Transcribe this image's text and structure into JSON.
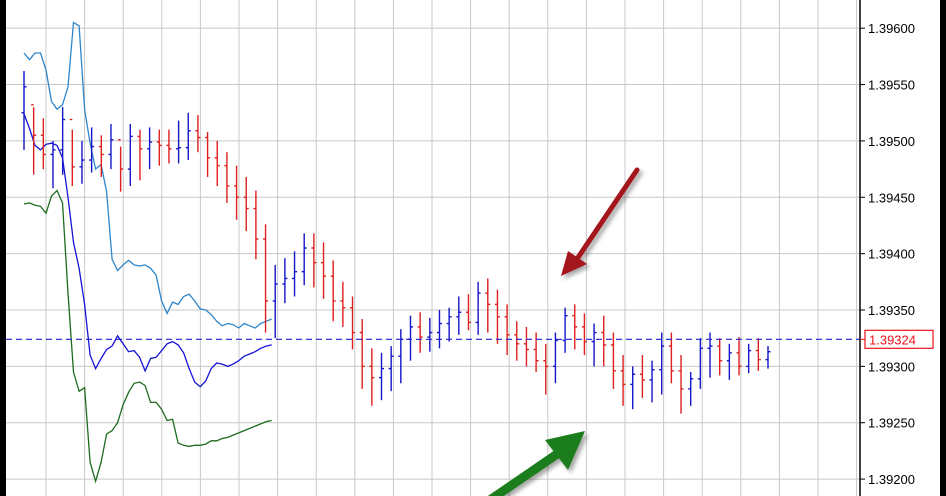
{
  "chart_data": {
    "type": "line",
    "title": "",
    "xlabel": "",
    "ylabel": "",
    "ylim": [
      1.39185,
      1.39625
    ],
    "y_ticks": [
      "1.39600",
      "1.39550",
      "1.39500",
      "1.39450",
      "1.39400",
      "1.39350",
      "1.39300",
      "1.39250",
      "1.39200"
    ],
    "current_price": "1.39324",
    "grid": true,
    "colors": {
      "upper_band": "#2f86c9",
      "lower_band": "#1e6b1e",
      "middle_line": "#1414d6",
      "bar_up": "#1414c8",
      "bar_down": "#e01e1e",
      "bar_neutral": "#111111",
      "price_line": "#2020d0",
      "arrow_red": "#a3121b",
      "arrow_green": "#1b7d1b",
      "grid": "#c8c8c8"
    },
    "series": [
      {
        "role": "upper_band",
        "x": [
          0,
          5,
          10,
          15,
          20,
          25,
          30,
          35,
          40,
          45,
          50,
          55,
          60,
          65,
          70,
          75,
          80,
          85,
          90,
          95,
          100,
          105,
          110,
          115,
          120,
          125,
          130,
          135,
          140,
          145,
          150,
          155,
          160,
          165,
          170,
          175,
          180,
          185,
          190,
          195,
          200,
          205,
          210,
          215,
          220,
          225
        ],
        "values": [
          1.39578,
          1.39572,
          1.39578,
          1.39578,
          1.39563,
          1.39535,
          1.39528,
          1.39532,
          1.39548,
          1.39605,
          1.39602,
          1.39528,
          1.39498,
          1.39475,
          1.39479,
          1.39455,
          1.39395,
          1.39385,
          1.3939,
          1.39394,
          1.3939,
          1.39389,
          1.3939,
          1.39387,
          1.39381,
          1.39358,
          1.39347,
          1.39357,
          1.39355,
          1.39362,
          1.39364,
          1.39358,
          1.39351,
          1.3935,
          1.39346,
          1.3934,
          1.39336,
          1.39338,
          1.39337,
          1.39334,
          1.39338,
          1.39336,
          1.39334,
          1.39338,
          1.3934,
          1.39342
        ]
      },
      {
        "role": "middle_band",
        "x": [
          0,
          5,
          10,
          15,
          20,
          25,
          30,
          35,
          40,
          45,
          50,
          55,
          60,
          65,
          70,
          75,
          80,
          85,
          90,
          95,
          100,
          105,
          110,
          115,
          120,
          125,
          130,
          135,
          140,
          145,
          150,
          155,
          160,
          165,
          170,
          175,
          180,
          185,
          190,
          195,
          200,
          205,
          210,
          215,
          220,
          225
        ],
        "values": [
          1.39524,
          1.39511,
          1.39496,
          1.39492,
          1.39497,
          1.39498,
          1.39496,
          1.39485,
          1.3945,
          1.3941,
          1.39387,
          1.39355,
          1.3931,
          1.39298,
          1.39307,
          1.39315,
          1.39318,
          1.39327,
          1.3932,
          1.39313,
          1.39314,
          1.39308,
          1.39296,
          1.39307,
          1.39308,
          1.39314,
          1.3932,
          1.39322,
          1.39319,
          1.39312,
          1.39298,
          1.39286,
          1.39282,
          1.39287,
          1.39298,
          1.39303,
          1.39302,
          1.393,
          1.39302,
          1.39305,
          1.39309,
          1.39311,
          1.39313,
          1.39316,
          1.39318,
          1.39319
        ]
      },
      {
        "role": "lower_band",
        "x": [
          0,
          5,
          10,
          15,
          20,
          25,
          30,
          35,
          40,
          45,
          50,
          55,
          60,
          65,
          70,
          75,
          80,
          85,
          90,
          95,
          100,
          105,
          110,
          115,
          120,
          125,
          130,
          135,
          140,
          145,
          150,
          155,
          160,
          165,
          170,
          175,
          180,
          185,
          190,
          195,
          200,
          205,
          210,
          215,
          220,
          225
        ],
        "values": [
          1.39444,
          1.39445,
          1.39443,
          1.39442,
          1.39436,
          1.39451,
          1.39456,
          1.39445,
          1.39365,
          1.39295,
          1.39278,
          1.39281,
          1.39215,
          1.39198,
          1.39215,
          1.3924,
          1.39243,
          1.3925,
          1.39266,
          1.39277,
          1.39285,
          1.39286,
          1.39283,
          1.39268,
          1.39268,
          1.39262,
          1.39252,
          1.39253,
          1.39232,
          1.3923,
          1.39229,
          1.3923,
          1.3923,
          1.39231,
          1.39234,
          1.39234,
          1.39236,
          1.39237,
          1.39239,
          1.39241,
          1.39243,
          1.39245,
          1.39247,
          1.39249,
          1.39251,
          1.39252
        ]
      }
    ],
    "bars": [
      [
        1.39525,
        1.39562,
        1.39492,
        1.39548
      ],
      [
        1.39532,
        1.3953,
        1.3947,
        1.39505
      ],
      [
        1.39505,
        1.3952,
        1.39475,
        1.39488
      ],
      [
        1.39488,
        1.395,
        1.39458,
        1.39492
      ],
      [
        1.39492,
        1.3953,
        1.3947,
        1.39519
      ],
      [
        1.39519,
        1.3951,
        1.3946,
        1.39477
      ],
      [
        1.39477,
        1.395,
        1.39462,
        1.39483
      ],
      [
        1.39483,
        1.39512,
        1.39472,
        1.39495
      ],
      [
        1.39495,
        1.39505,
        1.39468,
        1.39488
      ],
      [
        1.39488,
        1.39515,
        1.39475,
        1.39501
      ],
      [
        1.39501,
        1.39495,
        1.39455,
        1.39475
      ],
      [
        1.39475,
        1.39515,
        1.3946,
        1.39504
      ],
      [
        1.39504,
        1.3951,
        1.39465,
        1.39493
      ],
      [
        1.39493,
        1.39512,
        1.39475,
        1.39499
      ],
      [
        1.39499,
        1.3951,
        1.39478,
        1.39496
      ],
      [
        1.39496,
        1.3951,
        1.3948,
        1.39493
      ],
      [
        1.39493,
        1.39518,
        1.3948,
        1.39494
      ],
      [
        1.39494,
        1.39525,
        1.39483,
        1.39509
      ],
      [
        1.39509,
        1.39523,
        1.3949,
        1.39503
      ],
      [
        1.39503,
        1.39508,
        1.39468,
        1.39485
      ],
      [
        1.39485,
        1.395,
        1.3946,
        1.39478
      ],
      [
        1.39478,
        1.3949,
        1.39445,
        1.3946
      ],
      [
        1.3946,
        1.39478,
        1.3943,
        1.3945
      ],
      [
        1.3945,
        1.39468,
        1.3942,
        1.3944
      ],
      [
        1.3944,
        1.39456,
        1.39395,
        1.39413
      ],
      [
        1.39413,
        1.39426,
        1.3933,
        1.39358
      ],
      [
        1.39358,
        1.3939,
        1.39325,
        1.39373
      ],
      [
        1.39373,
        1.39396,
        1.39356,
        1.39378
      ],
      [
        1.39378,
        1.39402,
        1.39362,
        1.39384
      ],
      [
        1.39384,
        1.39418,
        1.39372,
        1.39405
      ],
      [
        1.39405,
        1.39418,
        1.3937,
        1.39392
      ],
      [
        1.39392,
        1.3941,
        1.3936,
        1.3938
      ],
      [
        1.3938,
        1.39394,
        1.3934,
        1.39358
      ],
      [
        1.39358,
        1.39375,
        1.39335,
        1.39352
      ],
      [
        1.39352,
        1.39362,
        1.39315,
        1.3933
      ],
      [
        1.3933,
        1.39342,
        1.3928,
        1.393
      ],
      [
        1.393,
        1.39316,
        1.39265,
        1.3929
      ],
      [
        1.3929,
        1.39312,
        1.3927,
        1.39298
      ],
      [
        1.39298,
        1.39318,
        1.39278,
        1.39309
      ],
      [
        1.39309,
        1.39333,
        1.39285,
        1.39324
      ],
      [
        1.39324,
        1.39345,
        1.39305,
        1.39335
      ],
      [
        1.39335,
        1.39348,
        1.39312,
        1.39326
      ],
      [
        1.39326,
        1.39343,
        1.39313,
        1.3933
      ],
      [
        1.3933,
        1.3935,
        1.39316,
        1.39338
      ],
      [
        1.39338,
        1.39352,
        1.39322,
        1.39344
      ],
      [
        1.39344,
        1.39362,
        1.39328,
        1.39348
      ],
      [
        1.39348,
        1.39364,
        1.39332,
        1.39339
      ],
      [
        1.39339,
        1.39375,
        1.39328,
        1.39365
      ],
      [
        1.39365,
        1.39378,
        1.3933,
        1.39355
      ],
      [
        1.39355,
        1.39368,
        1.3932,
        1.39344
      ],
      [
        1.39344,
        1.39355,
        1.3931,
        1.39328
      ],
      [
        1.39328,
        1.3934,
        1.39305,
        1.3932
      ],
      [
        1.3932,
        1.39335,
        1.393,
        1.39315
      ],
      [
        1.39315,
        1.3933,
        1.39295,
        1.39305
      ],
      [
        1.39305,
        1.3932,
        1.39275,
        1.393
      ],
      [
        1.393,
        1.3933,
        1.39285,
        1.39323
      ],
      [
        1.39323,
        1.39352,
        1.39312,
        1.39345
      ],
      [
        1.39345,
        1.39355,
        1.39315,
        1.39335
      ],
      [
        1.39335,
        1.39347,
        1.3931,
        1.39322
      ],
      [
        1.39322,
        1.39338,
        1.393,
        1.3933
      ],
      [
        1.3933,
        1.39345,
        1.393,
        1.39319
      ],
      [
        1.39319,
        1.3933,
        1.3928,
        1.39296
      ],
      [
        1.39296,
        1.3931,
        1.39265,
        1.39284
      ],
      [
        1.39284,
        1.393,
        1.39262,
        1.39293
      ],
      [
        1.39293,
        1.3931,
        1.39272,
        1.39288
      ],
      [
        1.39288,
        1.39305,
        1.39268,
        1.39297
      ],
      [
        1.39297,
        1.3933,
        1.39275,
        1.39318
      ],
      [
        1.39318,
        1.3933,
        1.39285,
        1.39296
      ],
      [
        1.39296,
        1.3931,
        1.39258,
        1.3928
      ],
      [
        1.3928,
        1.39295,
        1.39265,
        1.39289
      ],
      [
        1.39289,
        1.39325,
        1.3928,
        1.39316
      ],
      [
        1.39316,
        1.3933,
        1.3929,
        1.39318
      ],
      [
        1.39318,
        1.39325,
        1.39292,
        1.39305
      ],
      [
        1.39305,
        1.3932,
        1.39288,
        1.39312
      ],
      [
        1.39312,
        1.39326,
        1.39292,
        1.393
      ],
      [
        1.393,
        1.3932,
        1.39294,
        1.39314
      ],
      [
        1.39314,
        1.39325,
        1.39296,
        1.39306
      ],
      [
        1.39306,
        1.39318,
        1.39298,
        1.39313
      ]
    ],
    "annotations": [
      {
        "type": "arrow",
        "color": "red",
        "direction": "down-left",
        "label": ""
      },
      {
        "type": "arrow",
        "color": "green",
        "direction": "up-right",
        "label": ""
      }
    ]
  }
}
